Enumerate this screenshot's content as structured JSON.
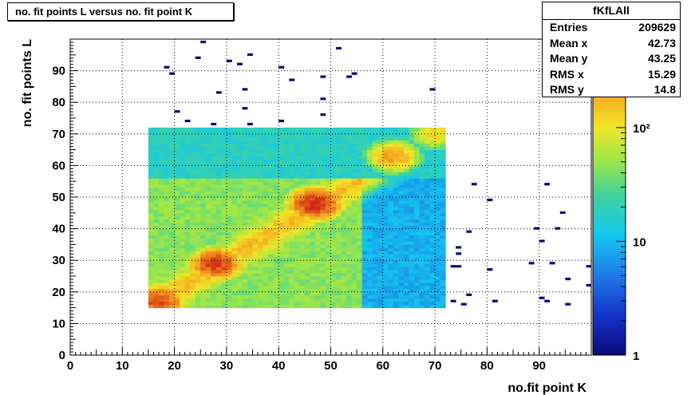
{
  "title": "no. fit points L versus no. fit point K",
  "stats": {
    "name": "fKfLAll",
    "rows": [
      {
        "label": "Entries",
        "value": "209629"
      },
      {
        "label": "Mean x",
        "value": "42.73"
      },
      {
        "label": "Mean y",
        "value": "43.25"
      },
      {
        "label": "RMS x",
        "value": "15.29"
      },
      {
        "label": "RMS y",
        "value": "14.8"
      }
    ]
  },
  "chart_data": {
    "type": "heatmap",
    "title": "no. fit points L versus no. fit point K",
    "xlabel": "no.fit point K",
    "ylabel": "no. fit points  L",
    "xlim": [
      0,
      100
    ],
    "ylim": [
      0,
      100
    ],
    "x_ticks": [
      "0",
      "10",
      "20",
      "30",
      "40",
      "50",
      "60",
      "70",
      "80",
      "90"
    ],
    "y_ticks": [
      "0",
      "10",
      "20",
      "30",
      "40",
      "50",
      "60",
      "70",
      "80",
      "90"
    ],
    "z_scale": "log",
    "z_range": [
      1,
      600
    ],
    "z_ticks": [
      "1",
      "10",
      "10²"
    ],
    "grid": true,
    "regions": [
      {
        "name": "upper band",
        "x": [
          15,
          72
        ],
        "y": [
          56,
          72
        ],
        "z_level": "medium-low"
      },
      {
        "name": "main block",
        "x": [
          15,
          56
        ],
        "y": [
          15,
          56
        ],
        "z_level": "medium-high"
      },
      {
        "name": "right block",
        "x": [
          56,
          72
        ],
        "y": [
          15,
          56
        ],
        "z_level": "low"
      }
    ],
    "hotspots": [
      {
        "x": 17,
        "y": 17,
        "z": 450
      },
      {
        "x": 28,
        "y": 29,
        "z": 500
      },
      {
        "x": 47,
        "y": 48,
        "z": 600
      },
      {
        "x": 62,
        "y": 63,
        "z": 220
      },
      {
        "x": 70,
        "y": 70,
        "z": 120
      }
    ],
    "sparse_points": [
      [
        25,
        99
      ],
      [
        51,
        97
      ],
      [
        34,
        95
      ],
      [
        24,
        94
      ],
      [
        30,
        93
      ],
      [
        32,
        92
      ],
      [
        18,
        91
      ],
      [
        40,
        91
      ],
      [
        19,
        89
      ],
      [
        54,
        89
      ],
      [
        48,
        88
      ],
      [
        53,
        88
      ],
      [
        42,
        87
      ],
      [
        33,
        84
      ],
      [
        69,
        84
      ],
      [
        28,
        83
      ],
      [
        48,
        81
      ],
      [
        33,
        78
      ],
      [
        20,
        77
      ],
      [
        48,
        76
      ],
      [
        22,
        74
      ],
      [
        27,
        73
      ],
      [
        34,
        73
      ],
      [
        40,
        74
      ],
      [
        77,
        54
      ],
      [
        91,
        54
      ],
      [
        80,
        49
      ],
      [
        94,
        45
      ],
      [
        76,
        39
      ],
      [
        89,
        40
      ],
      [
        93,
        40
      ],
      [
        90,
        36
      ],
      [
        74,
        34
      ],
      [
        74,
        32
      ],
      [
        88,
        29
      ],
      [
        92,
        29
      ],
      [
        73,
        28
      ],
      [
        74,
        28
      ],
      [
        99,
        28
      ],
      [
        80,
        27
      ],
      [
        95,
        24
      ],
      [
        99,
        22
      ],
      [
        76,
        19
      ],
      [
        73,
        17
      ],
      [
        81,
        17
      ],
      [
        90,
        18
      ],
      [
        75,
        16
      ],
      [
        91,
        17
      ],
      [
        95,
        16
      ]
    ]
  }
}
